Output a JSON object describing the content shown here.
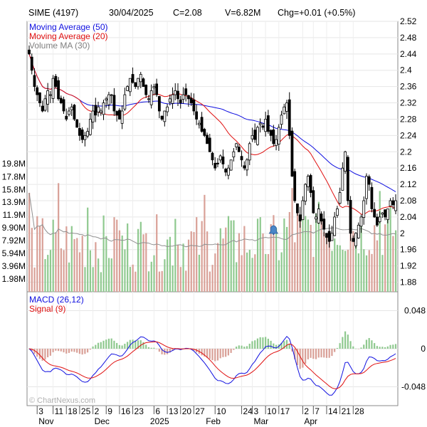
{
  "header": {
    "symbol": "SIME (4197)",
    "date": "30/04/2025",
    "close": "C=2.08",
    "volume": "V=6.82M",
    "change": "Chg=+0.01 (+0.5%)"
  },
  "watermark": "© ChartNexus.com",
  "colors": {
    "bull": "#ffffff",
    "bear": "#000000",
    "ma50": "#1010e0",
    "ma20": "#e01010",
    "volma": "#909090",
    "vol_up": "#8fc98f",
    "vol_down": "#d9a097",
    "macd": "#1010e0",
    "signal": "#e01010",
    "hist_up": "#8fc98f",
    "hist_down": "#d9a097",
    "alert": "#4a86c8"
  },
  "chart_data": [
    {
      "type": "candlestick",
      "title": "SIME (4197)",
      "legend": [
        "Moving Average (50)",
        "Moving Average (20)",
        "Volume MA (30)"
      ],
      "y_ticks": [
        "2.52",
        "2.48",
        "2.44",
        "2.4",
        "2.36",
        "2.32",
        "2.28",
        "2.24",
        "2.2",
        "2.16",
        "2.12",
        "2.08",
        "2.04",
        "2",
        "1.96",
        "1.92",
        "1.88"
      ],
      "ylim": [
        1.86,
        2.52
      ],
      "grid": true,
      "close_series": [
        2.44,
        2.4,
        2.36,
        2.34,
        2.32,
        2.3,
        2.33,
        2.35,
        2.34,
        2.38,
        2.36,
        2.33,
        2.32,
        2.3,
        2.28,
        2.3,
        2.31,
        2.28,
        2.26,
        2.24,
        2.23,
        2.24,
        2.25,
        2.28,
        2.3,
        2.29,
        2.31,
        2.3,
        2.32,
        2.33,
        2.34,
        2.34,
        2.3,
        2.29,
        2.28,
        2.3,
        2.34,
        2.36,
        2.38,
        2.37,
        2.36,
        2.38,
        2.39,
        2.36,
        2.34,
        2.33,
        2.35,
        2.36,
        2.34,
        2.3,
        2.28,
        2.3,
        2.31,
        2.33,
        2.34,
        2.35,
        2.33,
        2.32,
        2.34,
        2.34,
        2.33,
        2.32,
        2.3,
        2.28,
        2.27,
        2.25,
        2.24,
        2.22,
        2.2,
        2.18,
        2.16,
        2.17,
        2.19,
        2.17,
        2.15,
        2.16,
        2.18,
        2.2,
        2.22,
        2.2,
        2.18,
        2.16,
        2.18,
        2.22,
        2.24,
        2.23,
        2.26,
        2.27,
        2.26,
        2.28,
        2.25,
        2.24,
        2.22,
        2.23,
        2.26,
        2.29,
        2.31,
        2.32,
        2.24,
        2.14,
        2.08,
        2.05,
        2.03,
        2.08,
        2.12,
        2.14,
        2.1,
        2.05,
        2.04,
        2.06,
        2.03,
        2.01,
        1.99,
        1.98,
        2.0,
        2.04,
        2.06,
        2.1,
        2.16,
        2.2,
        2.08,
        2.0,
        1.98,
        2.0,
        2.02,
        2.04,
        2.08,
        2.14,
        2.12,
        2.06,
        2.04,
        2.02,
        2.04,
        2.05,
        2.04,
        2.06,
        2.08,
        2.07,
        2.08
      ],
      "volume_ticks": [
        "19.8M",
        "17.8M",
        "15.8M",
        "13.9M",
        "11.9M",
        "9.90M",
        "7.92M",
        "5.94M",
        "3.96M",
        "1.98M"
      ],
      "volume_scale_max": 21.8
    },
    {
      "type": "bar",
      "title": "MACD (26,12)",
      "legend": [
        "MACD (26,12)",
        "Signal (9)"
      ],
      "y_ticks": [
        "0.048",
        "0",
        "-0.048"
      ],
      "ylim": [
        -0.07,
        0.07
      ],
      "grid": true
    }
  ],
  "x_axis": {
    "ticks": [
      {
        "label": "3",
        "idx": 3
      },
      {
        "label": "11",
        "idx": 9
      },
      {
        "label": "18",
        "idx": 14
      },
      {
        "label": "25",
        "idx": 19
      },
      {
        "label": "2",
        "idx": 24
      },
      {
        "label": "9",
        "idx": 29
      },
      {
        "label": "16",
        "idx": 34
      },
      {
        "label": "23",
        "idx": 39
      },
      {
        "label": "6",
        "idx": 47
      },
      {
        "label": "13",
        "idx": 52
      },
      {
        "label": "20",
        "idx": 57
      },
      {
        "label": "27",
        "idx": 62
      },
      {
        "label": "10",
        "idx": 70
      },
      {
        "label": "24",
        "idx": 80
      },
      {
        "label": "3",
        "idx": 84
      },
      {
        "label": "10",
        "idx": 89
      },
      {
        "label": "17",
        "idx": 94
      },
      {
        "label": "2",
        "idx": 103
      },
      {
        "label": "7",
        "idx": 107
      },
      {
        "label": "14",
        "idx": 112
      },
      {
        "label": "21",
        "idx": 117
      },
      {
        "label": "28",
        "idx": 122
      }
    ],
    "months": [
      {
        "label": "Nov",
        "idx": 3
      },
      {
        "label": "Dec",
        "idx": 24
      },
      {
        "label": "2025",
        "idx": 45
      },
      {
        "label": "Feb",
        "idx": 66
      },
      {
        "label": "Mar",
        "idx": 84
      },
      {
        "label": "Apr",
        "idx": 103
      }
    ]
  }
}
